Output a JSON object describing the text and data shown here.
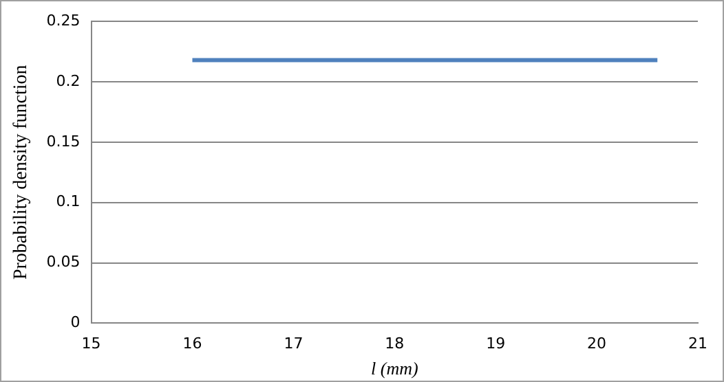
{
  "chart_data": {
    "type": "line",
    "xlabel": "l (mm)",
    "ylabel": "Probability density function",
    "series": [
      {
        "color": "#4f81bd",
        "x": [
          16,
          20.6
        ],
        "values": [
          0.218,
          0.218
        ]
      }
    ],
    "xlim": [
      15,
      21
    ],
    "xticks": [
      15,
      16,
      17,
      18,
      19,
      20,
      21
    ],
    "ylim": [
      0,
      0.25
    ],
    "yticks": [
      0,
      0.05,
      0.1,
      0.15,
      0.2,
      0.25
    ],
    "grid": "y",
    "legend": false,
    "marker": "none",
    "line_style": "solid"
  }
}
